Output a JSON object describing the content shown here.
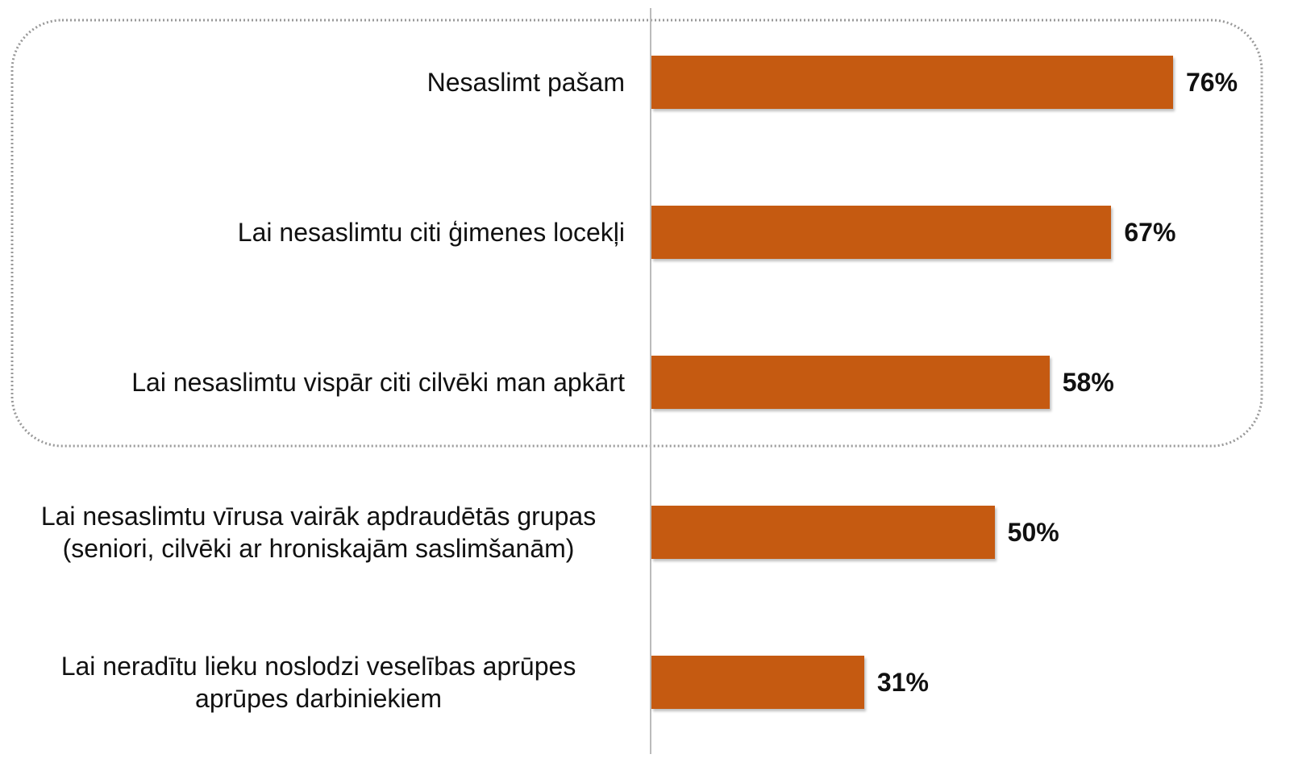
{
  "chart_data": {
    "type": "bar",
    "orientation": "horizontal",
    "categories": [
      "Nesaslimt pašam",
      "Lai nesaslimtu citi ģimenes locekļi",
      "Lai nesaslimtu vispār citi cilvēki man apkārt",
      "Lai nesaslimtu vīrusa vairāk apdraudētās grupas (seniori, cilvēki ar hroniskajām saslimšanām)",
      "Lai neradītu lieku noslodzi veselības aprūpes aprūpes darbiniekiem"
    ],
    "values": [
      76,
      67,
      58,
      50,
      31
    ],
    "value_labels": [
      "76%",
      "67%",
      "58%",
      "50%",
      "31%"
    ],
    "color": "#c55a11"
  }
}
